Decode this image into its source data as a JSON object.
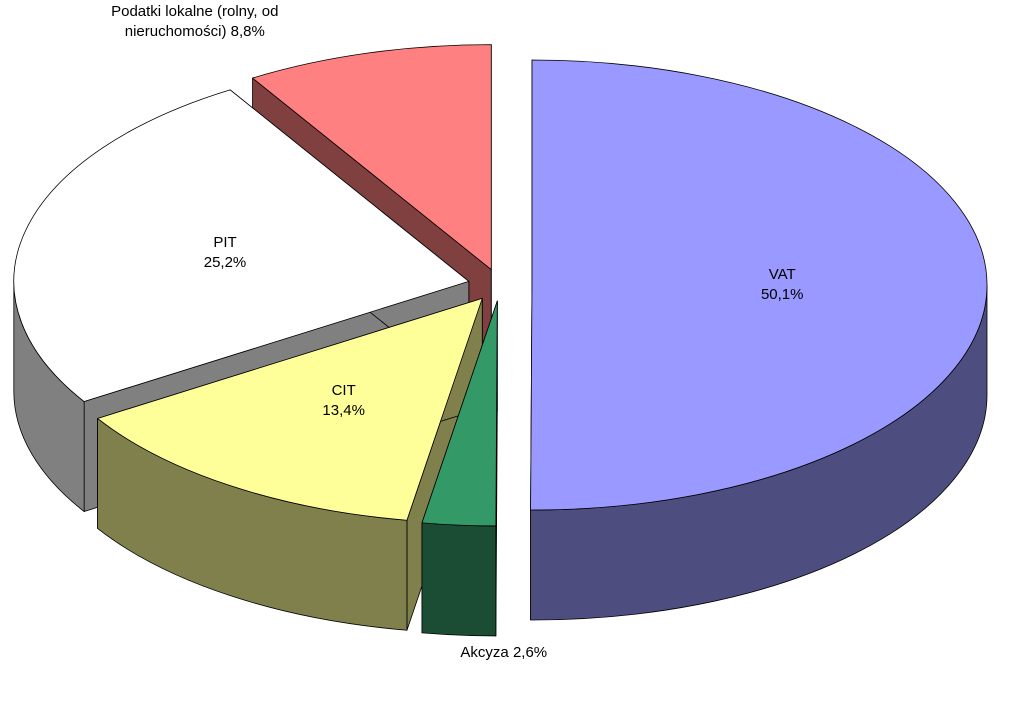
{
  "chart_data": {
    "type": "pie3d",
    "categories": [
      "VAT",
      "Akcyza",
      "CIT",
      "PIT",
      "Podatki lokalne (rolny, od nieruchomości)"
    ],
    "values": [
      50.1,
      2.6,
      13.4,
      25.2,
      8.8
    ],
    "value_labels": [
      "50,1%",
      "2,6%",
      "13,4%",
      "25,2%",
      "8,8%"
    ],
    "colors": [
      "#9999ff",
      "#339966",
      "#ffff99",
      "#ffffff",
      "#ff8080"
    ]
  }
}
